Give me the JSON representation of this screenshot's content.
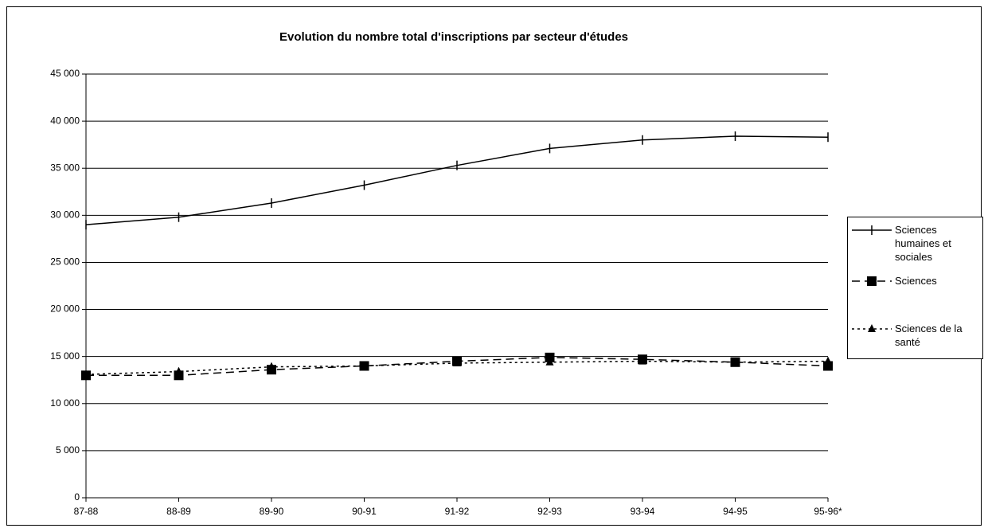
{
  "chart_data": {
    "type": "line",
    "title": "Evolution du nombre total d'inscriptions par secteur d'études",
    "categories": [
      "87-88",
      "88-89",
      "89-90",
      "90-91",
      "91-92",
      "92-93",
      "93-94",
      "94-95",
      "95-96*"
    ],
    "series": [
      {
        "name": "Sciences humaines et sociales",
        "color": "#000000",
        "marker": "tick",
        "dash": "solid",
        "values": [
          29000,
          29800,
          31300,
          33200,
          35300,
          37100,
          38000,
          38400,
          38300
        ]
      },
      {
        "name": "Sciences",
        "color": "#000000",
        "marker": "square",
        "dash": "dashed",
        "values": [
          13000,
          13000,
          13600,
          14000,
          14500,
          14900,
          14700,
          14400,
          14000
        ]
      },
      {
        "name": "Sciences de la santé",
        "color": "#000000",
        "marker": "triangle",
        "dash": "dotted",
        "values": [
          13100,
          13400,
          13900,
          14000,
          14300,
          14400,
          14500,
          14400,
          14500
        ]
      }
    ],
    "ylim": [
      0,
      45000
    ],
    "yticks": [
      0,
      {
        "value": 5000,
        "label": "5 000"
      },
      {
        "value": 10000,
        "label": "10 000"
      },
      {
        "value": 15000,
        "label": "15 000"
      },
      {
        "value": 20000,
        "label": "20 000"
      },
      {
        "value": 25000,
        "label": "25 000"
      },
      {
        "value": 30000,
        "label": "30 000"
      },
      {
        "value": 35000,
        "label": "35 000"
      },
      {
        "value": 40000,
        "label": "40 000"
      },
      {
        "value": 45000,
        "label": "45 000"
      }
    ],
    "grid": true,
    "legend": "right"
  }
}
